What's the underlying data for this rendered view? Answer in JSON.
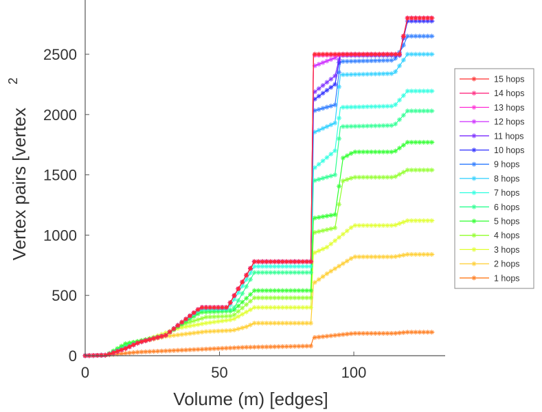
{
  "chart_data": {
    "type": "line",
    "title": "",
    "xlabel": "Volume (m) [edges]",
    "ylabel": "Vertex pairs [vertex",
    "ylabel_superscript": "2",
    "xlim": [
      0,
      134
    ],
    "ylim": [
      0,
      2950
    ],
    "xticks": [
      "0",
      "50",
      "100"
    ],
    "xtick_values": [
      0,
      50,
      100
    ],
    "yticks": [
      "0",
      "500",
      "1000",
      "1500",
      "2000",
      "2500"
    ],
    "ytick_values": [
      0,
      500,
      1000,
      1500,
      2000,
      2500
    ],
    "legend_position": "right",
    "series": [
      {
        "name": "15 hops",
        "color": "#ff2a2a",
        "points": [
          [
            0,
            0
          ],
          [
            8,
            5
          ],
          [
            15,
            60
          ],
          [
            20,
            110
          ],
          [
            30,
            170
          ],
          [
            35,
            260
          ],
          [
            43,
            400
          ],
          [
            53,
            400
          ],
          [
            55,
            480
          ],
          [
            63,
            780
          ],
          [
            84,
            780
          ],
          [
            85,
            2500
          ],
          [
            117,
            2500
          ],
          [
            120,
            2800
          ],
          [
            130,
            2800
          ]
        ]
      },
      {
        "name": "14 hops",
        "color": "#ff2a80",
        "points": [
          [
            0,
            0
          ],
          [
            8,
            5
          ],
          [
            15,
            60
          ],
          [
            20,
            110
          ],
          [
            30,
            170
          ],
          [
            35,
            260
          ],
          [
            43,
            400
          ],
          [
            53,
            400
          ],
          [
            55,
            480
          ],
          [
            63,
            780
          ],
          [
            84,
            780
          ],
          [
            85,
            2500
          ],
          [
            117,
            2500
          ],
          [
            120,
            2800
          ],
          [
            130,
            2800
          ]
        ]
      },
      {
        "name": "13 hops",
        "color": "#ff2ad4",
        "points": [
          [
            0,
            0
          ],
          [
            8,
            5
          ],
          [
            15,
            60
          ],
          [
            20,
            110
          ],
          [
            30,
            170
          ],
          [
            35,
            260
          ],
          [
            43,
            400
          ],
          [
            53,
            400
          ],
          [
            55,
            480
          ],
          [
            63,
            780
          ],
          [
            84,
            780
          ],
          [
            85,
            2490
          ],
          [
            117,
            2500
          ],
          [
            120,
            2800
          ],
          [
            130,
            2800
          ]
        ]
      },
      {
        "name": "12 hops",
        "color": "#cc2aff",
        "points": [
          [
            0,
            0
          ],
          [
            8,
            5
          ],
          [
            15,
            60
          ],
          [
            20,
            110
          ],
          [
            30,
            170
          ],
          [
            35,
            260
          ],
          [
            43,
            400
          ],
          [
            53,
            400
          ],
          [
            55,
            480
          ],
          [
            63,
            780
          ],
          [
            84,
            780
          ],
          [
            85,
            2400
          ],
          [
            93,
            2470
          ],
          [
            95,
            2500
          ],
          [
            117,
            2500
          ],
          [
            120,
            2800
          ],
          [
            130,
            2800
          ]
        ]
      },
      {
        "name": "11 hops",
        "color": "#7a2aff",
        "points": [
          [
            0,
            0
          ],
          [
            8,
            5
          ],
          [
            15,
            60
          ],
          [
            20,
            110
          ],
          [
            30,
            170
          ],
          [
            35,
            260
          ],
          [
            43,
            400
          ],
          [
            53,
            400
          ],
          [
            55,
            480
          ],
          [
            63,
            780
          ],
          [
            84,
            780
          ],
          [
            85,
            2180
          ],
          [
            93,
            2320
          ],
          [
            95,
            2500
          ],
          [
            117,
            2500
          ],
          [
            120,
            2800
          ],
          [
            130,
            2800
          ]
        ]
      },
      {
        "name": "10 hops",
        "color": "#2a2aff",
        "points": [
          [
            0,
            0
          ],
          [
            8,
            5
          ],
          [
            15,
            60
          ],
          [
            20,
            110
          ],
          [
            30,
            170
          ],
          [
            35,
            260
          ],
          [
            43,
            400
          ],
          [
            53,
            400
          ],
          [
            55,
            480
          ],
          [
            63,
            780
          ],
          [
            84,
            780
          ],
          [
            85,
            2120
          ],
          [
            93,
            2250
          ],
          [
            95,
            2490
          ],
          [
            117,
            2490
          ],
          [
            120,
            2775
          ],
          [
            130,
            2775
          ]
        ]
      },
      {
        "name": "9 hops",
        "color": "#2a7aff",
        "points": [
          [
            0,
            0
          ],
          [
            8,
            5
          ],
          [
            15,
            60
          ],
          [
            20,
            110
          ],
          [
            30,
            170
          ],
          [
            35,
            260
          ],
          [
            43,
            400
          ],
          [
            53,
            400
          ],
          [
            55,
            480
          ],
          [
            63,
            780
          ],
          [
            84,
            780
          ],
          [
            85,
            2030
          ],
          [
            93,
            2080
          ],
          [
            95,
            2440
          ],
          [
            115,
            2450
          ],
          [
            118,
            2550
          ],
          [
            120,
            2650
          ],
          [
            130,
            2650
          ]
        ]
      },
      {
        "name": "8 hops",
        "color": "#2acfff",
        "points": [
          [
            0,
            0
          ],
          [
            8,
            5
          ],
          [
            15,
            60
          ],
          [
            20,
            110
          ],
          [
            30,
            170
          ],
          [
            35,
            260
          ],
          [
            43,
            400
          ],
          [
            53,
            400
          ],
          [
            55,
            480
          ],
          [
            63,
            780
          ],
          [
            84,
            780
          ],
          [
            85,
            1850
          ],
          [
            93,
            1930
          ],
          [
            95,
            2330
          ],
          [
            115,
            2340
          ],
          [
            120,
            2500
          ],
          [
            130,
            2500
          ]
        ]
      },
      {
        "name": "7 hops",
        "color": "#2affe0",
        "points": [
          [
            0,
            0
          ],
          [
            8,
            5
          ],
          [
            15,
            60
          ],
          [
            20,
            110
          ],
          [
            30,
            170
          ],
          [
            35,
            260
          ],
          [
            43,
            390
          ],
          [
            53,
            390
          ],
          [
            55,
            450
          ],
          [
            63,
            740
          ],
          [
            84,
            740
          ],
          [
            85,
            1550
          ],
          [
            93,
            1700
          ],
          [
            95,
            2060
          ],
          [
            115,
            2070
          ],
          [
            120,
            2195
          ],
          [
            130,
            2195
          ]
        ]
      },
      {
        "name": "6 hops",
        "color": "#2aff90",
        "points": [
          [
            0,
            0
          ],
          [
            8,
            5
          ],
          [
            15,
            80
          ],
          [
            20,
            110
          ],
          [
            30,
            170
          ],
          [
            35,
            260
          ],
          [
            43,
            380
          ],
          [
            55,
            380
          ],
          [
            63,
            690
          ],
          [
            84,
            690
          ],
          [
            85,
            1450
          ],
          [
            93,
            1500
          ],
          [
            95,
            1900
          ],
          [
            115,
            1910
          ],
          [
            120,
            2030
          ],
          [
            130,
            2030
          ]
        ]
      },
      {
        "name": "5 hops",
        "color": "#2aff2a",
        "points": [
          [
            0,
            0
          ],
          [
            8,
            5
          ],
          [
            15,
            100
          ],
          [
            20,
            120
          ],
          [
            30,
            170
          ],
          [
            35,
            250
          ],
          [
            43,
            360
          ],
          [
            55,
            370
          ],
          [
            63,
            540
          ],
          [
            84,
            540
          ],
          [
            85,
            1140
          ],
          [
            93,
            1170
          ],
          [
            96,
            1640
          ],
          [
            100,
            1690
          ],
          [
            115,
            1690
          ],
          [
            120,
            1770
          ],
          [
            130,
            1770
          ]
        ]
      },
      {
        "name": "4 hops",
        "color": "#90ff2a",
        "points": [
          [
            0,
            0
          ],
          [
            8,
            5
          ],
          [
            15,
            90
          ],
          [
            20,
            120
          ],
          [
            30,
            170
          ],
          [
            35,
            250
          ],
          [
            45,
            320
          ],
          [
            55,
            330
          ],
          [
            63,
            480
          ],
          [
            84,
            480
          ],
          [
            85,
            1020
          ],
          [
            93,
            1060
          ],
          [
            96,
            1450
          ],
          [
            100,
            1480
          ],
          [
            115,
            1480
          ],
          [
            120,
            1540
          ],
          [
            130,
            1540
          ]
        ]
      },
      {
        "name": "3 hops",
        "color": "#e0ff2a",
        "points": [
          [
            0,
            0
          ],
          [
            8,
            5
          ],
          [
            15,
            80
          ],
          [
            25,
            150
          ],
          [
            35,
            230
          ],
          [
            45,
            270
          ],
          [
            55,
            300
          ],
          [
            63,
            400
          ],
          [
            84,
            400
          ],
          [
            85,
            850
          ],
          [
            90,
            900
          ],
          [
            100,
            1080
          ],
          [
            115,
            1080
          ],
          [
            120,
            1120
          ],
          [
            130,
            1120
          ]
        ]
      },
      {
        "name": "2 hops",
        "color": "#ffcc2a",
        "points": [
          [
            0,
            0
          ],
          [
            8,
            5
          ],
          [
            15,
            60
          ],
          [
            20,
            110
          ],
          [
            30,
            160
          ],
          [
            45,
            200
          ],
          [
            55,
            210
          ],
          [
            60,
            240
          ],
          [
            63,
            270
          ],
          [
            84,
            270
          ],
          [
            85,
            600
          ],
          [
            90,
            680
          ],
          [
            100,
            820
          ],
          [
            115,
            820
          ],
          [
            120,
            840
          ],
          [
            130,
            840
          ]
        ]
      },
      {
        "name": "1 hops",
        "color": "#ff7a1a",
        "points": [
          [
            0,
            0
          ],
          [
            8,
            5
          ],
          [
            15,
            20
          ],
          [
            20,
            30
          ],
          [
            40,
            50
          ],
          [
            60,
            70
          ],
          [
            84,
            80
          ],
          [
            85,
            150
          ],
          [
            100,
            185
          ],
          [
            115,
            185
          ],
          [
            120,
            195
          ],
          [
            130,
            195
          ]
        ]
      }
    ]
  }
}
